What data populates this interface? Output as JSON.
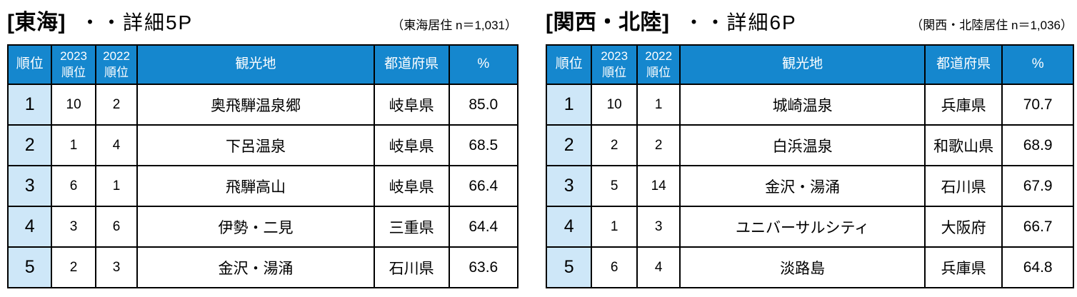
{
  "colors": {
    "header_bg": "#1587CE",
    "header_text": "#FFFFFF",
    "rank_column_bg": "#CEE7F8",
    "border": "#000000",
    "page_bg": "#FFFFFF"
  },
  "tables": [
    {
      "title_region": "[東海]",
      "title_detail": "・・詳細5P",
      "sample_note": "（東海居住 n＝1,031）",
      "headers": {
        "rank": "順位",
        "rank_2023_line1": "2023",
        "rank_2023_line2": "順位",
        "rank_2022_line1": "2022",
        "rank_2022_line2": "順位",
        "spot": "観光地",
        "prefecture": "都道府県",
        "percent": "%"
      },
      "rows": [
        {
          "rank": "1",
          "rank_2023": "10",
          "rank_2022": "2",
          "spot": "奥飛騨温泉郷",
          "prefecture": "岐阜県",
          "percent": "85.0"
        },
        {
          "rank": "2",
          "rank_2023": "1",
          "rank_2022": "4",
          "spot": "下呂温泉",
          "prefecture": "岐阜県",
          "percent": "68.5"
        },
        {
          "rank": "3",
          "rank_2023": "6",
          "rank_2022": "1",
          "spot": "飛騨高山",
          "prefecture": "岐阜県",
          "percent": "66.4"
        },
        {
          "rank": "4",
          "rank_2023": "3",
          "rank_2022": "6",
          "spot": "伊勢・二見",
          "prefecture": "三重県",
          "percent": "64.4"
        },
        {
          "rank": "5",
          "rank_2023": "2",
          "rank_2022": "3",
          "spot": "金沢・湯涌",
          "prefecture": "石川県",
          "percent": "63.6"
        }
      ]
    },
    {
      "title_region": "[関西・北陸]",
      "title_detail": "・・詳細6P",
      "sample_note": "（関西・北陸居住 n＝1,036）",
      "headers": {
        "rank": "順位",
        "rank_2023_line1": "2023",
        "rank_2023_line2": "順位",
        "rank_2022_line1": "2022",
        "rank_2022_line2": "順位",
        "spot": "観光地",
        "prefecture": "都道府県",
        "percent": "%"
      },
      "rows": [
        {
          "rank": "1",
          "rank_2023": "10",
          "rank_2022": "1",
          "spot": "城崎温泉",
          "prefecture": "兵庫県",
          "percent": "70.7"
        },
        {
          "rank": "2",
          "rank_2023": "2",
          "rank_2022": "2",
          "spot": "白浜温泉",
          "prefecture": "和歌山県",
          "percent": "68.9"
        },
        {
          "rank": "3",
          "rank_2023": "5",
          "rank_2022": "14",
          "spot": "金沢・湯涌",
          "prefecture": "石川県",
          "percent": "67.9"
        },
        {
          "rank": "4",
          "rank_2023": "1",
          "rank_2022": "3",
          "spot": "ユニバーサルシティ",
          "prefecture": "大阪府",
          "percent": "66.7"
        },
        {
          "rank": "5",
          "rank_2023": "6",
          "rank_2022": "4",
          "spot": "淡路島",
          "prefecture": "兵庫県",
          "percent": "64.8"
        }
      ]
    }
  ]
}
